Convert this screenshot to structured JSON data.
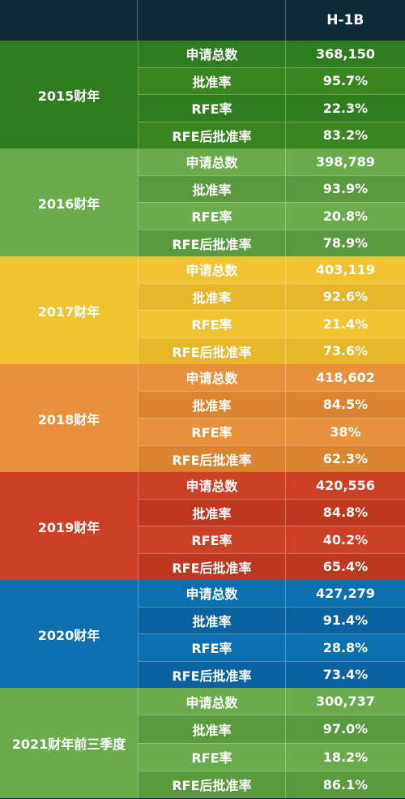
{
  "chart_data": {
    "type": "table",
    "columns": [
      "",
      "",
      "H-1B"
    ],
    "groups": [
      {
        "year": "2015财年",
        "colors": {
          "main": "#2e7d1e",
          "alt": "#39861f"
        },
        "rows": [
          {
            "metric": "申请总数",
            "value": "368,150"
          },
          {
            "metric": "批准率",
            "value": "95.7%"
          },
          {
            "metric": "RFE率",
            "value": "22.3%"
          },
          {
            "metric": "RFE后批准率",
            "value": "83.2%"
          }
        ]
      },
      {
        "year": "2016财年",
        "colors": {
          "main": "#6aac4b",
          "alt": "#5a9a3e"
        },
        "rows": [
          {
            "metric": "申请总数",
            "value": "398,789"
          },
          {
            "metric": "批准率",
            "value": "93.9%"
          },
          {
            "metric": "RFE率",
            "value": "20.8%"
          },
          {
            "metric": "RFE后批准率",
            "value": "78.9%"
          }
        ]
      },
      {
        "year": "2017财年",
        "colors": {
          "main": "#f1c232",
          "alt": "#e6b728"
        },
        "rows": [
          {
            "metric": "申请总数",
            "value": "403,119"
          },
          {
            "metric": "批准率",
            "value": "92.6%"
          },
          {
            "metric": "RFE率",
            "value": "21.4%"
          },
          {
            "metric": "RFE后批准率",
            "value": "73.6%"
          }
        ]
      },
      {
        "year": "2018财年",
        "colors": {
          "main": "#e8913c",
          "alt": "#db8530"
        },
        "rows": [
          {
            "metric": "申请总数",
            "value": "418,602"
          },
          {
            "metric": "批准率",
            "value": "84.5%"
          },
          {
            "metric": "RFE率",
            "value": "38%"
          },
          {
            "metric": "RFE后批准率",
            "value": "62.3%"
          }
        ]
      },
      {
        "year": "2019财年",
        "colors": {
          "main": "#cc4125",
          "alt": "#bd381e"
        },
        "rows": [
          {
            "metric": "申请总数",
            "value": "420,556"
          },
          {
            "metric": "批准率",
            "value": "84.8%"
          },
          {
            "metric": "RFE率",
            "value": "40.2%"
          },
          {
            "metric": "RFE后批准率",
            "value": "65.4%"
          }
        ]
      },
      {
        "year": "2020财年",
        "colors": {
          "main": "#0b6fb0",
          "alt": "#0a63a0"
        },
        "rows": [
          {
            "metric": "申请总数",
            "value": "427,279"
          },
          {
            "metric": "批准率",
            "value": "91.4%"
          },
          {
            "metric": "RFE率",
            "value": "28.8%"
          },
          {
            "metric": "RFE后批准率",
            "value": "73.4%"
          }
        ]
      },
      {
        "year": "2021财年前三季度",
        "colors": {
          "main": "#6aac4b",
          "alt": "#5a9a3e"
        },
        "rows": [
          {
            "metric": "申请总数",
            "value": "300,737"
          },
          {
            "metric": "批准率",
            "value": "97.0%"
          },
          {
            "metric": "RFE率",
            "value": "18.2%"
          },
          {
            "metric": "RFE后批准率",
            "value": "86.1%"
          }
        ]
      }
    ]
  },
  "colors": {
    "header_bg": "#0f2a38",
    "text": "#ffffff"
  }
}
